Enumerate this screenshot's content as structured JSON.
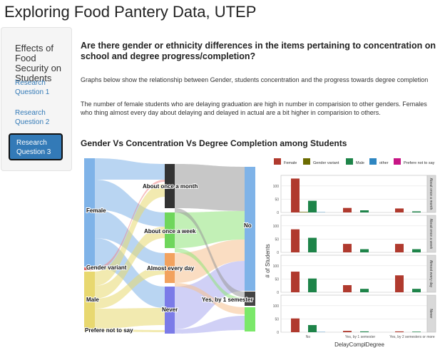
{
  "app": {
    "title": "Exploring Food Pantery Data, UTEP"
  },
  "sidebar": {
    "heading": "Effects of Food Security on Students",
    "items": [
      {
        "label": "Research Question 1"
      },
      {
        "label": "Research Question 2"
      },
      {
        "label": "Research Question 3",
        "active": true
      }
    ]
  },
  "main": {
    "question": "Are there gender or ethnicity differences in the items pertaining to concentration on school and degree progress/completion?",
    "intro": "Graphs below show the relationship between Gender, students concentration and the progress towards degree completion",
    "finding": "The number of female students who are delaying graduation are high in number in comparision to other genders. Females who thing almost every day about delaying and delayed in actual are a bit higher in comparision to others.",
    "chart_title": "Gender Vs Concentration Vs Degree Completion among Students"
  },
  "chart_data": [
    {
      "type": "sankey",
      "nodes": {
        "gender": [
          "Female",
          "Gender variant",
          "Male",
          "Prefere not to say"
        ],
        "concentration": [
          "About once a month",
          "About once a week",
          "Almost every day",
          "Never"
        ],
        "completion": [
          "No",
          "Yes, by 1 semester"
        ]
      }
    },
    {
      "type": "bar",
      "xlabel": "DelayComplDegree",
      "ylabel": "# of Students",
      "categories": [
        "No",
        "Yes, by 1 semester",
        "Yes, by 2 semesters or more"
      ],
      "legend": [
        "Female",
        "Gender variant",
        "Male",
        "other",
        "Prefere not to say"
      ],
      "colors": [
        "#b03a2e",
        "#6b6b00",
        "#1e8449",
        "#2e86c1",
        "#c71585"
      ],
      "facets": [
        {
          "label": "About once a month",
          "series": [
            [
              128,
              17,
              15
            ],
            [
              2,
              0,
              0
            ],
            [
              44,
              8,
              4
            ],
            [
              1,
              0,
              0
            ],
            [
              0,
              0,
              0
            ]
          ]
        },
        {
          "label": "About once a week",
          "series": [
            [
              87,
              32,
              32
            ],
            [
              0,
              0,
              0
            ],
            [
              55,
              12,
              12
            ],
            [
              0,
              0,
              0
            ],
            [
              0,
              0,
              0
            ]
          ]
        },
        {
          "label": "Almost every day",
          "series": [
            [
              78,
              27,
              64
            ],
            [
              0,
              0,
              0
            ],
            [
              52,
              13,
              13
            ],
            [
              0,
              0,
              0
            ],
            [
              0,
              0,
              0
            ]
          ]
        },
        {
          "label": "Never",
          "series": [
            [
              52,
              5,
              3
            ],
            [
              0,
              0,
              0
            ],
            [
              27,
              3,
              2
            ],
            [
              1,
              0,
              0
            ],
            [
              0,
              0,
              0
            ]
          ]
        }
      ],
      "yticks": [
        0,
        50,
        100
      ]
    }
  ]
}
